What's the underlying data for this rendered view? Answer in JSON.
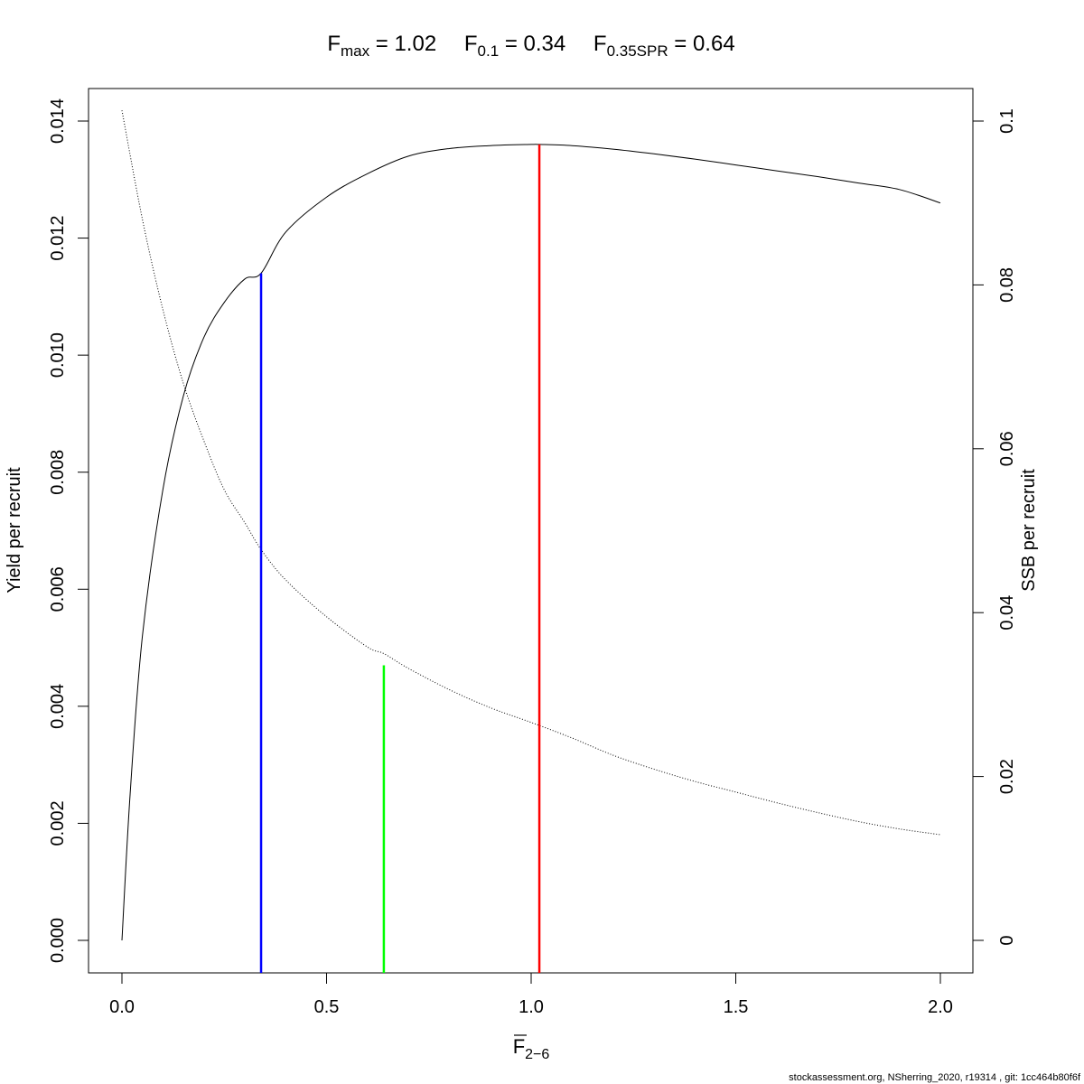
{
  "chart_data": {
    "type": "line",
    "title_parts": [
      {
        "symbol": "F",
        "sub": "max",
        "eq": " = ",
        "value": "1.02"
      },
      {
        "symbol": "F",
        "sub": "0.1",
        "eq": " = ",
        "value": "0.34"
      },
      {
        "symbol": "F",
        "sub": "0.35SPR",
        "eq": " = ",
        "value": "0.64"
      }
    ],
    "xlabel": {
      "symbol": "F",
      "sub": "2−6",
      "overbar": true
    },
    "ylabel_left": "Yield per recruit",
    "ylabel_right": "SSB per recruit",
    "xlim": [
      0,
      2.0
    ],
    "ylim_left": [
      0,
      0.014
    ],
    "ylim_right": [
      0,
      0.1
    ],
    "x_ticks": [
      "0.0",
      "0.5",
      "1.0",
      "1.5",
      "2.0"
    ],
    "y_left_ticks": [
      "0.000",
      "0.002",
      "0.004",
      "0.006",
      "0.008",
      "0.010",
      "0.012",
      "0.014"
    ],
    "y_right_ticks": [
      "0",
      "0.02",
      "0.04",
      "0.06",
      "0.08",
      "0.1"
    ],
    "grid": false,
    "series": [
      {
        "axis": "left",
        "style": "solid",
        "color": "#000000",
        "x": [
          0,
          0.02,
          0.05,
          0.1,
          0.15,
          0.2,
          0.25,
          0.3,
          0.34,
          0.4,
          0.5,
          0.6,
          0.7,
          0.8,
          0.9,
          1.0,
          1.02,
          1.1,
          1.2,
          1.3,
          1.4,
          1.5,
          1.6,
          1.7,
          1.8,
          1.9,
          2.0
        ],
        "values": [
          0,
          0.0025,
          0.0052,
          0.0077,
          0.0093,
          0.0103,
          0.0109,
          0.0113,
          0.0114,
          0.0121,
          0.0127,
          0.0131,
          0.0134,
          0.01353,
          0.01358,
          0.0136,
          0.0136,
          0.01358,
          0.01352,
          0.01344,
          0.01335,
          0.01325,
          0.01315,
          0.01305,
          0.01294,
          0.01283,
          0.0126
        ]
      },
      {
        "axis": "right",
        "style": "dotted",
        "color": "#000000",
        "x": [
          0,
          0.05,
          0.1,
          0.15,
          0.2,
          0.25,
          0.3,
          0.34,
          0.4,
          0.5,
          0.6,
          0.64,
          0.7,
          0.8,
          0.9,
          1.0,
          1.1,
          1.2,
          1.3,
          1.4,
          1.5,
          1.6,
          1.7,
          1.8,
          1.9,
          2.0
        ],
        "values": [
          0.1013,
          0.088,
          0.077,
          0.068,
          0.061,
          0.055,
          0.051,
          0.0477,
          0.044,
          0.0395,
          0.0358,
          0.035,
          0.0332,
          0.0306,
          0.0284,
          0.0266,
          0.0247,
          0.0226,
          0.0209,
          0.0194,
          0.0181,
          0.0168,
          0.0156,
          0.0145,
          0.0136,
          0.0129
        ]
      }
    ],
    "reference_lines": [
      {
        "name": "Fmax",
        "x": 1.02,
        "yield": 0.0136,
        "color": "#ff0000"
      },
      {
        "name": "F0.1",
        "x": 0.34,
        "yield": 0.0114,
        "color": "#0000ff"
      },
      {
        "name": "F0.35SPR",
        "x": 0.64,
        "yield": 0.0047,
        "color": "#00ff00"
      }
    ]
  },
  "footer": "stockassessment.org, NSherring_2020, r19314 , git: 1cc464b80f6f"
}
